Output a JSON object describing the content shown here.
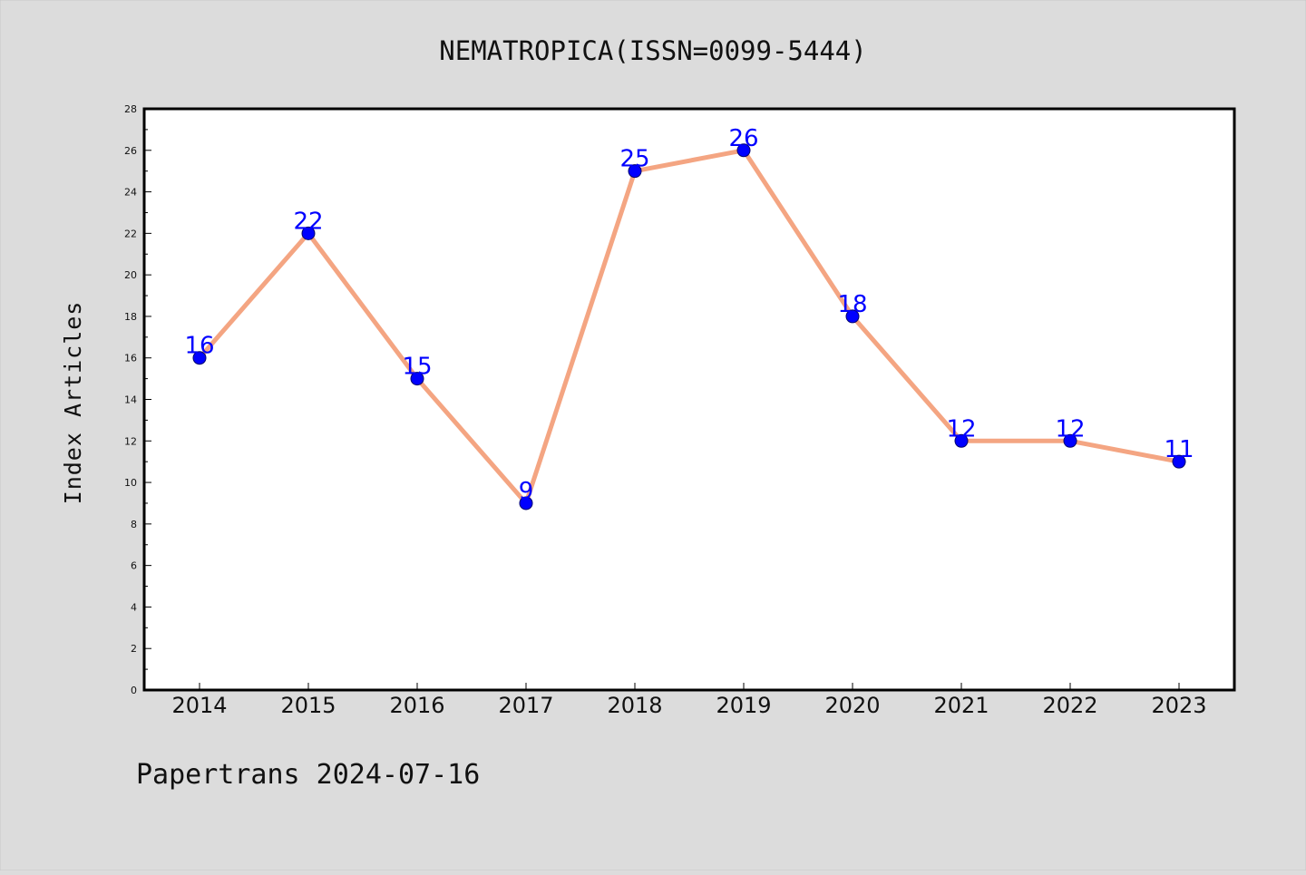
{
  "chart_data": {
    "type": "line",
    "title": "NEMATROPICA(ISSN=0099-5444)",
    "xlabel": "",
    "ylabel": "Index Articles",
    "categories": [
      "2014",
      "2015",
      "2016",
      "2017",
      "2018",
      "2019",
      "2020",
      "2021",
      "2022",
      "2023"
    ],
    "values": [
      16,
      22,
      15,
      9,
      25,
      26,
      18,
      12,
      12,
      11
    ],
    "ylim": [
      0,
      28
    ],
    "ytick_step": 2,
    "grid": false,
    "legend": "none",
    "data_labels": true
  },
  "footer": "Papertrans 2024-07-16",
  "colors": {
    "background": "#dcdcdc",
    "plot_background": "#ffffff",
    "line": "#f4a582",
    "marker": "#0000ff",
    "data_label": "#0000ff",
    "axis": "#000000"
  }
}
